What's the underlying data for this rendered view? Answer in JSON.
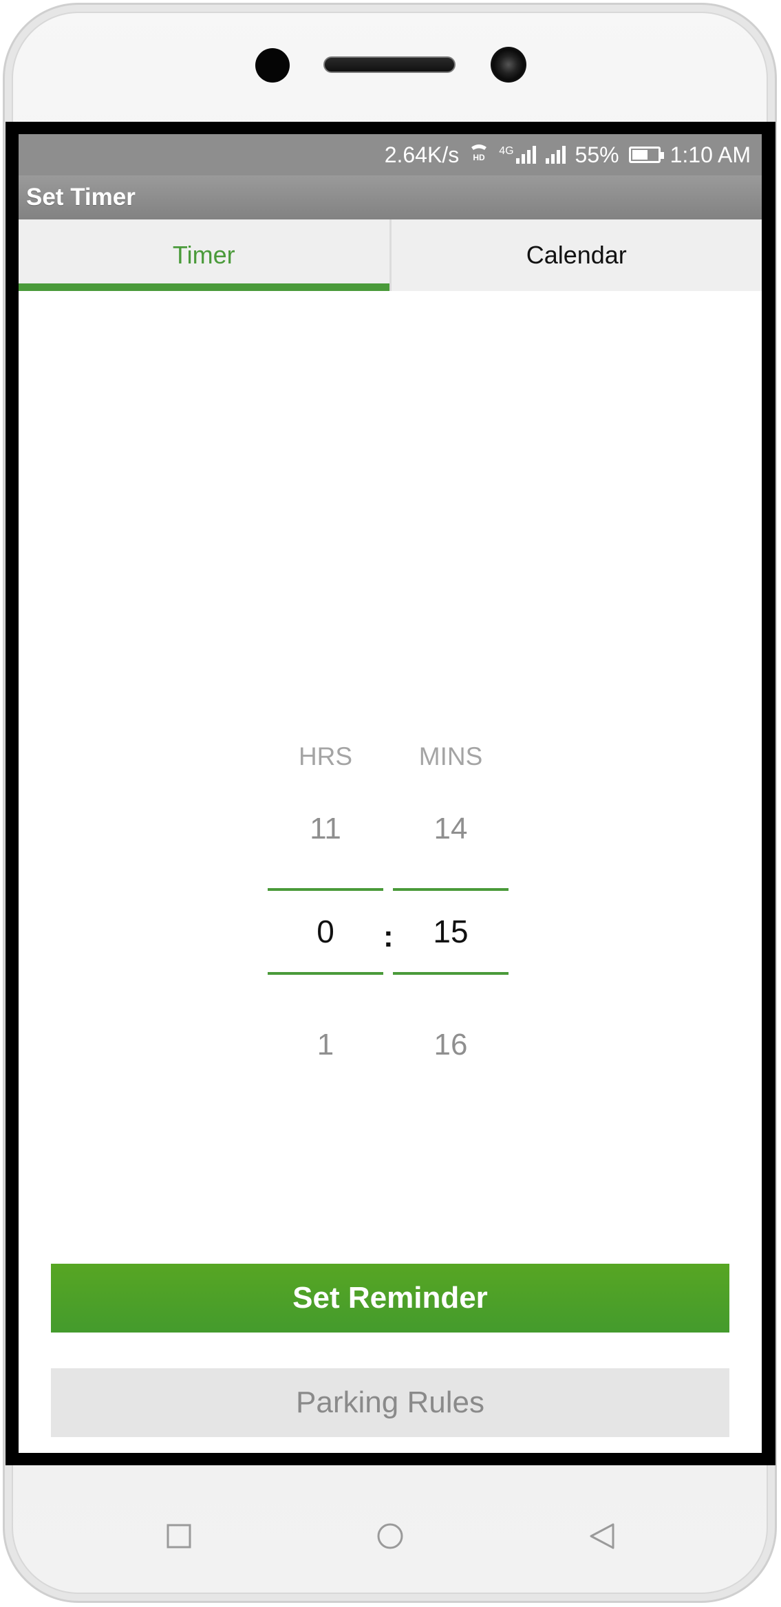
{
  "status_bar": {
    "network_speed": "2.64K/s",
    "hd_label": "HD",
    "lte_label": "4G",
    "battery_percent": "55%",
    "battery_level": 0.55,
    "time": "1:10 AM"
  },
  "app_bar": {
    "title": "Set Timer"
  },
  "tabs": [
    {
      "label": "Timer",
      "active": true
    },
    {
      "label": "Calendar",
      "active": false
    }
  ],
  "picker": {
    "hours": {
      "header": "HRS",
      "prev": "11",
      "selected": "0",
      "next": "1"
    },
    "separator": ":",
    "minutes": {
      "header": "MINS",
      "prev": "14",
      "selected": "15",
      "next": "16"
    }
  },
  "buttons": {
    "set_reminder": "Set Reminder",
    "parking_rules": "Parking Rules"
  },
  "colors": {
    "accent": "#4a9a3a",
    "primary_button": "#4e9f28",
    "app_bar": "#8e8e8e"
  },
  "nav_bar": {
    "recents_icon": "square-icon",
    "home_icon": "circle-icon",
    "back_icon": "triangle-back-icon"
  }
}
